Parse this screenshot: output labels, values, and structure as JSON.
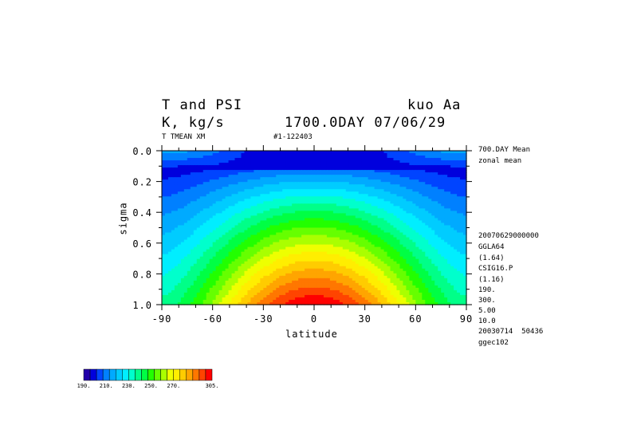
{
  "header": {
    "title_left": "T and PSI",
    "title_right": "kuo Aa",
    "unit_line": "K, kg/s",
    "time_line": "1700.0DAY 07/06/29",
    "sub_left": "T TMEAN XM",
    "sub_right": "#1-122403"
  },
  "side_info": {
    "lines_top": [
      "700.DAY Mean",
      "zonal mean"
    ],
    "lines_mid": [
      "20070629000000",
      "GGLA64",
      "(1.64)",
      "CSIG16.P",
      "(1.16)",
      "190.",
      "300.",
      "5.00",
      "10.0",
      "20030714  50436",
      "ggec102"
    ]
  },
  "chart_data": {
    "type": "heatmap",
    "title": "T and PSI",
    "xlabel": "latitude",
    "ylabel": "sigma",
    "xlim": [
      -90,
      90
    ],
    "ylim": [
      1.0,
      0.0
    ],
    "x_ticks": [
      -90,
      -60,
      -30,
      0,
      30,
      60,
      90
    ],
    "x_tick_labels": [
      "-90",
      "-60",
      "-30",
      "0",
      "30",
      "60",
      "90"
    ],
    "y_ticks": [
      0.0,
      0.2,
      0.4,
      0.6,
      0.8,
      1.0
    ],
    "y_tick_labels": [
      "0.0",
      "0.2",
      "0.4",
      "0.6",
      "0.8",
      "1.0"
    ],
    "value_range": [
      190,
      305
    ],
    "colorbar": {
      "labels": [
        "190.",
        "210.",
        "230.",
        "250.",
        "270.",
        "305."
      ],
      "colors": [
        "#2200aa",
        "#0000dd",
        "#0044ff",
        "#0080ff",
        "#00aaff",
        "#00ccff",
        "#00eeff",
        "#00ffcc",
        "#00ff88",
        "#00ff44",
        "#22ff00",
        "#66ff00",
        "#aaff00",
        "#eeff00",
        "#ffee00",
        "#ffcc00",
        "#ffa500",
        "#ff7700",
        "#ff4400",
        "#ff0000"
      ]
    }
  }
}
